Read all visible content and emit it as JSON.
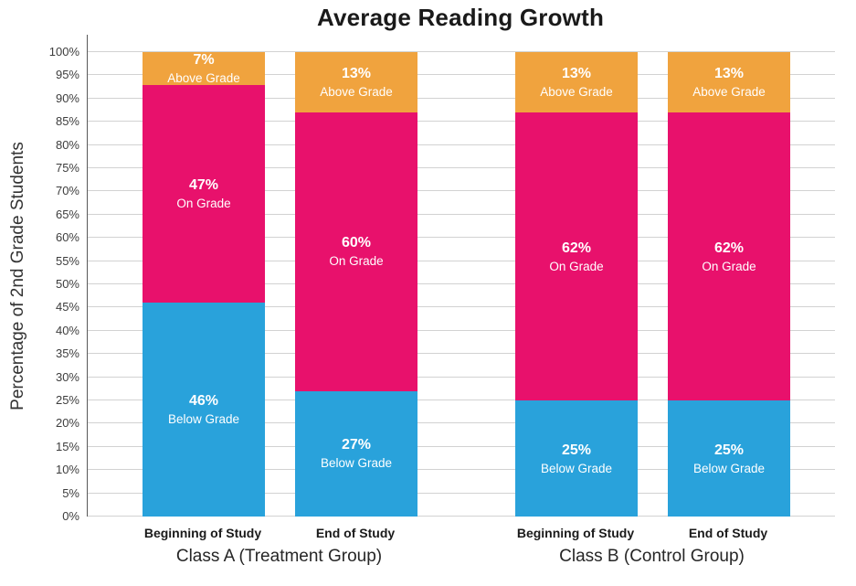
{
  "chart_data": {
    "type": "bar",
    "variant": "stacked-100-percent",
    "title": "Average Reading Growth",
    "xlabel": "",
    "ylabel": "Percentage of 2nd Grade Students",
    "ylim": [
      0,
      100
    ],
    "ytick_step": 5,
    "yticks": [
      "0%",
      "5%",
      "10%",
      "15%",
      "20%",
      "25%",
      "30%",
      "35%",
      "40%",
      "45%",
      "50%",
      "55%",
      "60%",
      "65%",
      "70%",
      "75%",
      "80%",
      "85%",
      "90%",
      "95%",
      "100%"
    ],
    "grid": true,
    "legend": "none",
    "labels_inside_segments": true,
    "series_order": [
      "Below Grade",
      "On Grade",
      "Above Grade"
    ],
    "colors": {
      "Below Grade": "#29A2DB",
      "On Grade": "#E8116C",
      "Above Grade": "#F0A33E"
    },
    "segment_text_color": "#FFFFFF",
    "gridline_color": "#D2D2D2",
    "axis_line_color": "#595959",
    "background_color": "#FFFFFF",
    "groups": [
      {
        "label": "Class A (Treatment Group)",
        "bars": [
          {
            "label": "Beginning of Study",
            "segments": [
              {
                "name": "Below Grade",
                "value": 46,
                "value_label": "46%"
              },
              {
                "name": "On Grade",
                "value": 47,
                "value_label": "47%"
              },
              {
                "name": "Above Grade",
                "value": 7,
                "value_label": "7%"
              }
            ]
          },
          {
            "label": "End of Study",
            "segments": [
              {
                "name": "Below Grade",
                "value": 27,
                "value_label": "27%"
              },
              {
                "name": "On Grade",
                "value": 60,
                "value_label": "60%"
              },
              {
                "name": "Above Grade",
                "value": 13,
                "value_label": "13%"
              }
            ]
          }
        ]
      },
      {
        "label": "Class B (Control Group)",
        "bars": [
          {
            "label": "Beginning of Study",
            "segments": [
              {
                "name": "Below Grade",
                "value": 25,
                "value_label": "25%"
              },
              {
                "name": "On Grade",
                "value": 62,
                "value_label": "62%"
              },
              {
                "name": "Above Grade",
                "value": 13,
                "value_label": "13%"
              }
            ]
          },
          {
            "label": "End of Study",
            "segments": [
              {
                "name": "Below Grade",
                "value": 25,
                "value_label": "25%"
              },
              {
                "name": "On Grade",
                "value": 62,
                "value_label": "62%"
              },
              {
                "name": "Above Grade",
                "value": 13,
                "value_label": "13%"
              }
            ]
          }
        ]
      }
    ]
  }
}
